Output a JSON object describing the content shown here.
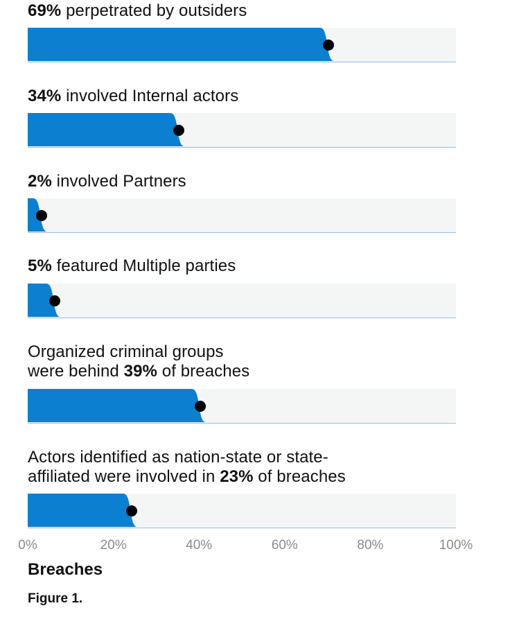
{
  "chart_data": {
    "type": "bar",
    "orientation": "horizontal",
    "xlabel": "Breaches",
    "xlim": [
      0,
      100
    ],
    "xticks": [
      "0%",
      "20%",
      "40%",
      "60%",
      "80%",
      "100%"
    ],
    "caption": "Figure 1.",
    "colors": {
      "fill": "#0d7fd0",
      "track": "#f4f6f6",
      "marker": "#000000"
    },
    "bars": [
      {
        "value": 69,
        "lines": [
          [
            {
              "t": "69%",
              "b": true
            },
            {
              "t": " perpetrated by outsiders",
              "b": false
            }
          ]
        ]
      },
      {
        "value": 34,
        "lines": [
          [
            {
              "t": "34%",
              "b": true
            },
            {
              "t": " involved Internal actors",
              "b": false
            }
          ]
        ]
      },
      {
        "value": 2,
        "lines": [
          [
            {
              "t": "2%",
              "b": true
            },
            {
              "t": " involved Partners",
              "b": false
            }
          ]
        ]
      },
      {
        "value": 5,
        "lines": [
          [
            {
              "t": "5%",
              "b": true
            },
            {
              "t": " featured Multiple parties",
              "b": false
            }
          ]
        ]
      },
      {
        "value": 39,
        "lines": [
          [
            {
              "t": "Organized criminal groups",
              "b": false
            }
          ],
          [
            {
              "t": "were behind ",
              "b": false
            },
            {
              "t": "39%",
              "b": true
            },
            {
              "t": " of breaches",
              "b": false
            }
          ]
        ]
      },
      {
        "value": 23,
        "lines": [
          [
            {
              "t": "Actors identified as nation-state or state-",
              "b": false
            }
          ],
          [
            {
              "t": "affiliated were involved in ",
              "b": false
            },
            {
              "t": "23%",
              "b": true
            },
            {
              "t": " of breaches",
              "b": false
            }
          ]
        ]
      }
    ]
  }
}
